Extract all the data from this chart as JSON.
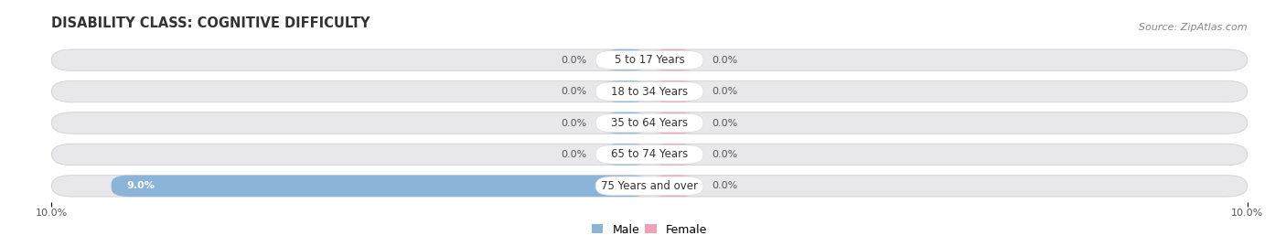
{
  "title": "DISABILITY CLASS: COGNITIVE DIFFICULTY",
  "source": "Source: ZipAtlas.com",
  "categories": [
    "5 to 17 Years",
    "18 to 34 Years",
    "35 to 64 Years",
    "65 to 74 Years",
    "75 Years and over"
  ],
  "male_values": [
    0.0,
    0.0,
    0.0,
    0.0,
    9.0
  ],
  "female_values": [
    0.0,
    0.0,
    0.0,
    0.0,
    0.0
  ],
  "male_color": "#8ab4d8",
  "female_color": "#f0a0b8",
  "bar_bg_color": "#e8e8ea",
  "bar_bg_edge": "#d0d0d2",
  "axis_max": 10.0,
  "title_fontsize": 10.5,
  "label_fontsize": 8,
  "cat_fontsize": 8.5,
  "legend_fontsize": 9,
  "source_fontsize": 8,
  "min_bar_width": 0.8
}
